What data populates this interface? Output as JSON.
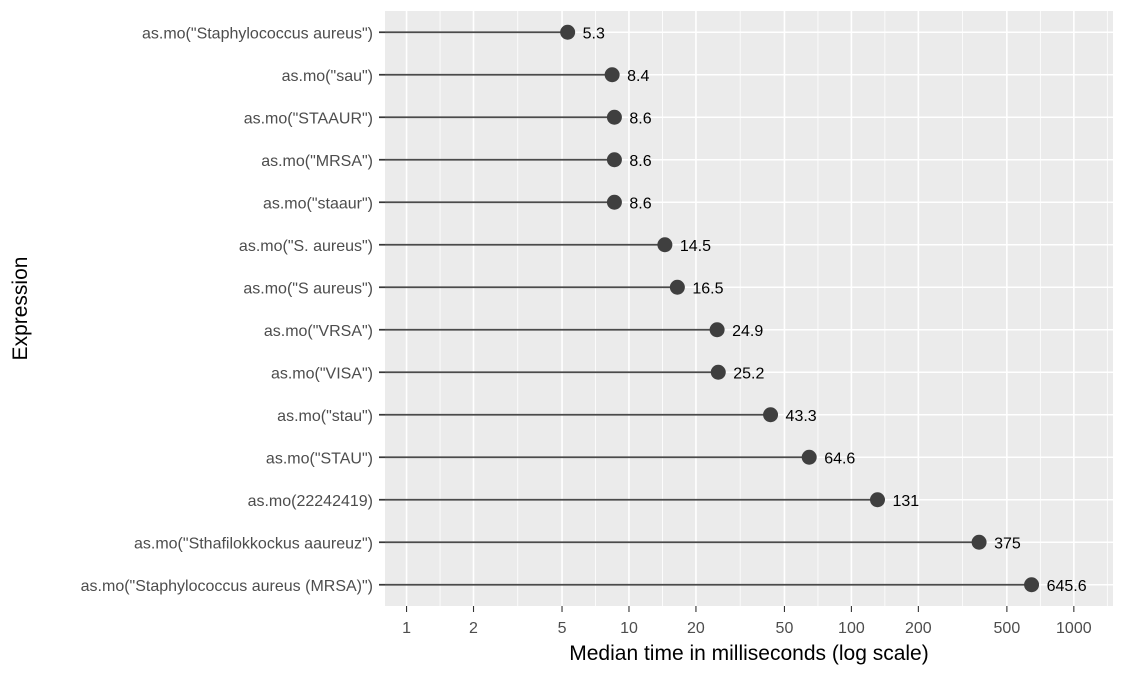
{
  "chart_data": {
    "type": "lollipop",
    "xlabel": "Median time in milliseconds (log scale)",
    "ylabel": "Expression",
    "x_scale": "log10",
    "xlim": [
      0.8,
      1500
    ],
    "x_ticks": [
      1,
      2,
      5,
      10,
      20,
      50,
      100,
      200,
      500,
      1000
    ],
    "x_tick_labels": [
      "1",
      "2",
      "5",
      "10",
      "20",
      "50",
      "100",
      "200",
      "500",
      "1000"
    ],
    "grid": true,
    "categories": [
      "as.mo(\"Staphylococcus aureus\")",
      "as.mo(\"sau\")",
      "as.mo(\"STAAUR\")",
      "as.mo(\"MRSA\")",
      "as.mo(\"staaur\")",
      "as.mo(\"S. aureus\")",
      "as.mo(\"S aureus\")",
      "as.mo(\"VRSA\")",
      "as.mo(\"VISA\")",
      "as.mo(\"stau\")",
      "as.mo(\"STAU\")",
      "as.mo(22242419)",
      "as.mo(\"Sthafilokkockus aaureuz\")",
      "as.mo(\"Staphylococcus aureus (MRSA)\")"
    ],
    "values": [
      5.3,
      8.4,
      8.6,
      8.6,
      8.6,
      14.5,
      16.5,
      24.9,
      25.2,
      43.3,
      64.6,
      131,
      375,
      645.6
    ],
    "value_labels": [
      "5.3",
      "8.4",
      "8.6",
      "8.6",
      "8.6",
      "14.5",
      "16.5",
      "24.9",
      "25.2",
      "43.3",
      "64.6",
      "131",
      "375",
      "645.6"
    ],
    "colors": {
      "panel": "#ebebeb",
      "grid": "#ffffff",
      "stem": "#4a4a4a",
      "point": "#3f3f3f"
    }
  }
}
